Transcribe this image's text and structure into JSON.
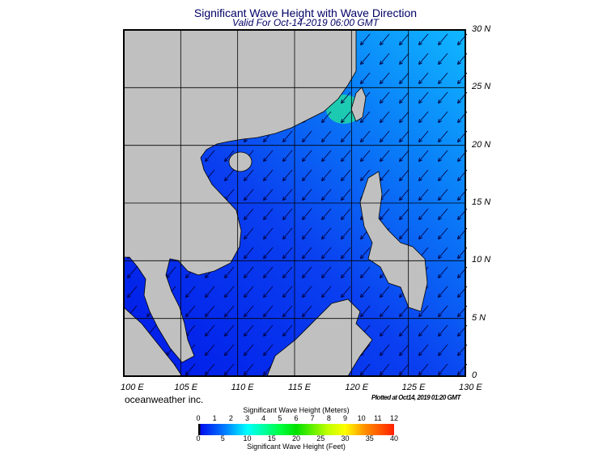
{
  "title": "Significant Wave Height with Wave Direction",
  "subtitle": "Valid For Oct-14-2019 06:00 GMT",
  "map": {
    "lon_range": [
      100,
      130
    ],
    "lat_range": [
      0,
      30
    ],
    "grid_step_deg": 5,
    "lon_labels": [
      "100 E",
      "105 E",
      "110 E",
      "115 E",
      "120 E",
      "125 E",
      "130 E"
    ],
    "lat_labels": [
      "30 N",
      "25 N",
      "20 N",
      "15 N",
      "10 N",
      "5 N",
      "0"
    ],
    "land_color": "#c0c0c0",
    "wave_direction": "toward southwest"
  },
  "brand": "oceanweather inc.",
  "plotted": "Plotted at Oct14, 2019 01:20 GMT",
  "colorbar": {
    "meters_title": "Significant Wave Height (Meters)",
    "feet_title": "Significant Wave Height (Feet)",
    "meters_ticks": [
      "0",
      "1",
      "2",
      "3",
      "4",
      "5",
      "6",
      "7",
      "8",
      "9",
      "10",
      "11",
      "12"
    ],
    "feet_ticks": [
      "0",
      "5",
      "10",
      "15",
      "20",
      "25",
      "30",
      "35",
      "40"
    ]
  }
}
